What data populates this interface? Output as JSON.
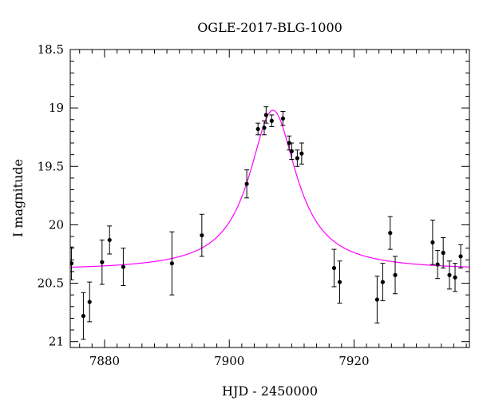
{
  "chart_data": {
    "type": "scatter",
    "title": "OGLE-2017-BLG-1000",
    "xlabel": "HJD - 2450000",
    "ylabel": "I magnitude",
    "xlim": [
      7874.5,
      7938.5
    ],
    "ylim": [
      21.05,
      18.5
    ],
    "y_inverted": true,
    "x_ticks": [
      7880,
      7900,
      7920
    ],
    "y_ticks": [
      18.5,
      19,
      19.5,
      20,
      20.5,
      21
    ],
    "y_tick_labels": [
      "18.5",
      "19",
      "19.5",
      "20",
      "20.5",
      "21"
    ],
    "grid": false,
    "series": [
      {
        "kind": "points_with_errorbars",
        "color": "#000000",
        "points": [
          {
            "x": 7874.7,
            "y": 20.33,
            "err": 0.14
          },
          {
            "x": 7876.6,
            "y": 20.78,
            "err": 0.2
          },
          {
            "x": 7877.6,
            "y": 20.66,
            "err": 0.17
          },
          {
            "x": 7879.6,
            "y": 20.32,
            "err": 0.19
          },
          {
            "x": 7880.8,
            "y": 20.13,
            "err": 0.12
          },
          {
            "x": 7883.0,
            "y": 20.36,
            "err": 0.16
          },
          {
            "x": 7890.8,
            "y": 20.33,
            "err": 0.27
          },
          {
            "x": 7895.6,
            "y": 20.09,
            "err": 0.18
          },
          {
            "x": 7902.8,
            "y": 19.65,
            "err": 0.12
          },
          {
            "x": 7904.6,
            "y": 19.18,
            "err": 0.05
          },
          {
            "x": 7905.6,
            "y": 19.17,
            "err": 0.06
          },
          {
            "x": 7905.9,
            "y": 19.06,
            "err": 0.07
          },
          {
            "x": 7906.8,
            "y": 19.11,
            "err": 0.05
          },
          {
            "x": 7908.6,
            "y": 19.09,
            "err": 0.06
          },
          {
            "x": 7909.6,
            "y": 19.3,
            "err": 0.06
          },
          {
            "x": 7910.0,
            "y": 19.37,
            "err": 0.07
          },
          {
            "x": 7910.9,
            "y": 19.43,
            "err": 0.07
          },
          {
            "x": 7911.6,
            "y": 19.39,
            "err": 0.09
          },
          {
            "x": 7916.8,
            "y": 20.37,
            "err": 0.16
          },
          {
            "x": 7917.7,
            "y": 20.49,
            "err": 0.18
          },
          {
            "x": 7923.7,
            "y": 20.64,
            "err": 0.2
          },
          {
            "x": 7924.6,
            "y": 20.49,
            "err": 0.16
          },
          {
            "x": 7925.8,
            "y": 20.07,
            "err": 0.14
          },
          {
            "x": 7926.6,
            "y": 20.43,
            "err": 0.16
          },
          {
            "x": 7932.6,
            "y": 20.15,
            "err": 0.19
          },
          {
            "x": 7933.4,
            "y": 20.34,
            "err": 0.12
          },
          {
            "x": 7934.3,
            "y": 20.24,
            "err": 0.13
          },
          {
            "x": 7935.3,
            "y": 20.43,
            "err": 0.12
          },
          {
            "x": 7936.2,
            "y": 20.45,
            "err": 0.12
          },
          {
            "x": 7937.1,
            "y": 20.27,
            "err": 0.1
          }
        ]
      },
      {
        "kind": "model_curve",
        "color": "#ff00ff",
        "model": {
          "t0": 7907.0,
          "baseline": 20.39,
          "peak": 19.02,
          "tE": 4.6
        }
      }
    ]
  }
}
